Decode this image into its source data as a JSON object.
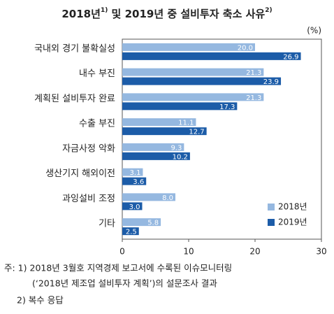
{
  "chart_data": {
    "type": "hbar",
    "title": [
      "2018년",
      "1)",
      " 및 2019년 중 설비투자 축소 사유",
      "2)"
    ],
    "unit_label": "(%)",
    "categories": [
      "국내외 경기 불확실성",
      "내수 부진",
      "계획된 설비투자 완료",
      "수출 부진",
      "자금사정 악화",
      "생산기지 해외이전",
      "과잉설비 조정",
      "기타"
    ],
    "series": [
      {
        "name": "2018년",
        "color": "#95b8e0",
        "values": [
          20.0,
          21.3,
          21.3,
          11.1,
          9.3,
          3.1,
          8.0,
          5.8
        ],
        "value_labels": [
          "20.0",
          "21.3",
          "21.3",
          "11.1",
          "9.3",
          "3.1",
          "8.0",
          "5.8"
        ]
      },
      {
        "name": "2019년",
        "color": "#1c5ca8",
        "values": [
          26.9,
          23.9,
          17.3,
          12.7,
          10.2,
          3.6,
          3.0,
          2.5
        ],
        "value_labels": [
          "26.9",
          "23.9",
          "17.3",
          "12.7",
          "10.2",
          "3.6",
          "3.0",
          "2.5"
        ]
      }
    ],
    "xlim": [
      0,
      30
    ],
    "xticks": [
      0,
      10,
      20,
      30
    ],
    "notes": [
      "주: 1) 2018년 3월호 지역경제 보고서에 수록된 이슈모니터링",
      "(‘2018년 제조업 설비투자 계획’)의 설문조사 결과",
      "2) 복수 응답"
    ]
  }
}
